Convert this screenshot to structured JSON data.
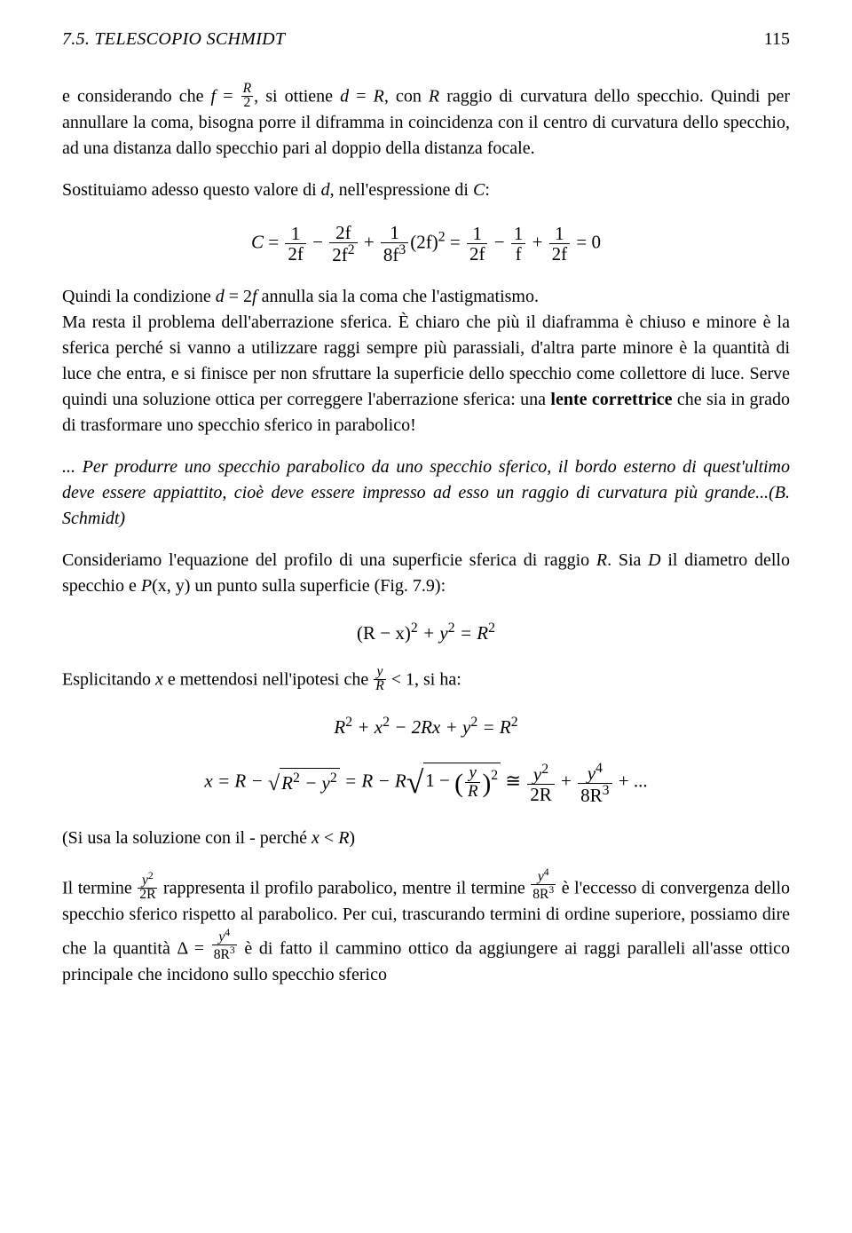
{
  "header": {
    "section": "7.5. TELESCOPIO SCHMIDT",
    "page_number": "115"
  },
  "p1_a": "e considerando che ",
  "p1_f": "f",
  "p1_eq": " = ",
  "p1_frac_num": "R",
  "p1_frac_den": "2",
  "p1_b": ", si ottiene ",
  "p1_d": "d",
  "p1_eq2": " = ",
  "p1_R": "R",
  "p1_c": ", con ",
  "p1_R2": "R",
  "p1_d2": " raggio di curvatura dello specchio. Quindi per annullare la coma, bisogna porre il diframma in coincidenza con il centro di curvatura dello specchio, ad una distanza dallo specchio pari al doppio della distanza focale.",
  "p2_a": "Sostituiamo adesso questo valore di ",
  "p2_d": "d",
  "p2_b": ", nell'espressione di ",
  "p2_C": "C",
  "p2_c": ":",
  "eq1": {
    "lhs": "C",
    "eq": " = ",
    "t1_num": "1",
    "t1_den": "2f",
    "minus1": " − ",
    "t2_num": "2f",
    "t2_den": "2f",
    "t2_den_sup": "2",
    "plus1": " + ",
    "t3_num": "1",
    "t3_den": "8f",
    "t3_den_sup": "3",
    "t3_tail": "(2f)",
    "t3_tail_sup": "2",
    "eq2": " = ",
    "t4_num": "1",
    "t4_den": "2f",
    "minus2": " − ",
    "t5_num": "1",
    "t5_den": "f",
    "plus2": " + ",
    "t6_num": "1",
    "t6_den": "2f",
    "eq3": " = 0"
  },
  "p3_a": "Quindi la condizione ",
  "p3_d": "d",
  "p3_eq": " = 2",
  "p3_f": "f",
  "p3_b": " annulla sia la coma che l'astigmatismo.",
  "p4": "Ma resta il problema dell'aberrazione sferica. È chiaro che più il diaframma è chiuso e minore è la sferica perché si vanno a utilizzare raggi sempre più parassiali, d'altra parte minore è la quantità di luce che entra, e si finisce per non sfruttare la superficie dello specchio come collettore di luce. Serve quindi una soluzione ottica per correggere l'aberrazione sferica: una ",
  "p4_bold": "lente correttrice",
  "p4_tail": " che sia in grado di trasformare uno specchio sferico in parabolico!",
  "p5": "... Per produrre uno specchio parabolico da uno specchio sferico, il bordo esterno di quest'ultimo deve essere appiattito, cioè deve essere impresso ad esso un raggio di curvatura più grande...(B. Schmidt)",
  "p6_a": "Consideriamo l'equazione del profilo di una superficie sferica di raggio ",
  "p6_R": "R",
  "p6_b": ". Sia ",
  "p6_D": "D",
  "p6_c": " il diametro dello specchio e ",
  "p6_P": "P",
  "p6_paren": "(x, y)",
  "p6_d": " un punto sulla superficie (Fig. 7.9):",
  "eq2": "(R − x)",
  "eq2_sup1": "2",
  "eq2_mid": " + y",
  "eq2_sup2": "2",
  "eq2_rhs": " = R",
  "eq2_sup3": "2",
  "p7_a": "Esplicitando ",
  "p7_x": "x",
  "p7_b": " e mettendosi nell'ipotesi che ",
  "p7_frac_num": "y",
  "p7_frac_den": "R",
  "p7_c": " < 1, si ha:",
  "eq3_a": "R",
  "eq3_s1": "2",
  "eq3_b": " + x",
  "eq3_s2": "2",
  "eq3_c": " − 2Rx + y",
  "eq3_s3": "2",
  "eq3_d": " = R",
  "eq3_s4": "2",
  "eq4_a": "x = R − ",
  "eq4_rad1_a": "R",
  "eq4_rad1_s1": "2",
  "eq4_rad1_b": " − y",
  "eq4_rad1_s2": "2",
  "eq4_b": " = R − R",
  "eq4_rad2_a": "1 − ",
  "eq4_rad2_frac_num": "y",
  "eq4_rad2_frac_den": "R",
  "eq4_rad2_sup": "2",
  "eq4_c": " ≅ ",
  "eq4_t1_num": "y",
  "eq4_t1_num_sup": "2",
  "eq4_t1_den": "2R",
  "eq4_d": " + ",
  "eq4_t2_num": "y",
  "eq4_t2_num_sup": "4",
  "eq4_t2_den": "8R",
  "eq4_t2_den_sup": "3",
  "eq4_e": " + ...",
  "p8_a": "(Si usa la soluzione con il - perché ",
  "p8_x": "x",
  "p8_lt": " < ",
  "p8_R": "R",
  "p8_b": ")",
  "p9_a": "Il termine ",
  "p9_f1_num": "y",
  "p9_f1_num_sup": "2",
  "p9_f1_den": "2R",
  "p9_b": " rappresenta il profilo parabolico, mentre il termine ",
  "p9_f2_num": "y",
  "p9_f2_num_sup": "4",
  "p9_f2_den": "8R",
  "p9_f2_den_sup": "3",
  "p9_c": " è l'eccesso di convergenza dello specchio sferico rispetto al parabolico. Per cui, trascurando termini di ordine superiore, possiamo dire che la quantità Δ = ",
  "p9_f3_num": "y",
  "p9_f3_num_sup": "4",
  "p9_f3_den": "8R",
  "p9_f3_den_sup": "3",
  "p9_d": " è di fatto il cammino ottico da aggiungere ai raggi paralleli all'asse ottico principale che incidono sullo specchio sferico"
}
